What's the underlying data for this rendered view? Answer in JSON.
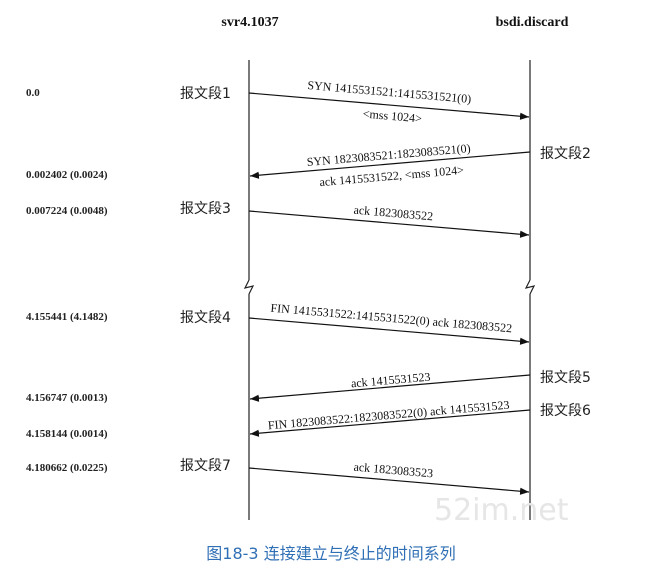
{
  "hosts": {
    "left": "svr4.1037",
    "right": "bsdi.discard"
  },
  "timestamps": [
    "0.0",
    "0.002402 (0.0024)",
    "0.007224 (0.0048)",
    "4.155441 (4.1482)",
    "4.156747 (0.0013)",
    "4.158144 (0.0014)",
    "4.180662 (0.0225)"
  ],
  "segments": [
    {
      "label": "报文段1",
      "direction": "right",
      "lines": [
        "SYN 1415531521:1415531521(0)",
        "<mss 1024>"
      ]
    },
    {
      "label": "报文段2",
      "direction": "left",
      "lines": [
        "SYN 1823083521:1823083521(0)",
        "ack 1415531522, <mss 1024>"
      ]
    },
    {
      "label": "报文段3",
      "direction": "right",
      "lines": [
        "ack 1823083522"
      ]
    },
    {
      "label": "报文段4",
      "direction": "right",
      "lines": [
        "FIN 1415531522:1415531522(0) ack 1823083522"
      ]
    },
    {
      "label": "报文段5",
      "direction": "left",
      "lines": [
        "ack 1415531523"
      ]
    },
    {
      "label": "报文段6",
      "direction": "left",
      "lines": [
        "FIN 1823083522:1823083522(0) ack 1415531523"
      ]
    },
    {
      "label": "报文段7",
      "direction": "right",
      "lines": [
        "ack 1823083523"
      ]
    }
  ],
  "watermark": "52im.net",
  "caption": "图18-3 连接建立与终止的时间系列"
}
